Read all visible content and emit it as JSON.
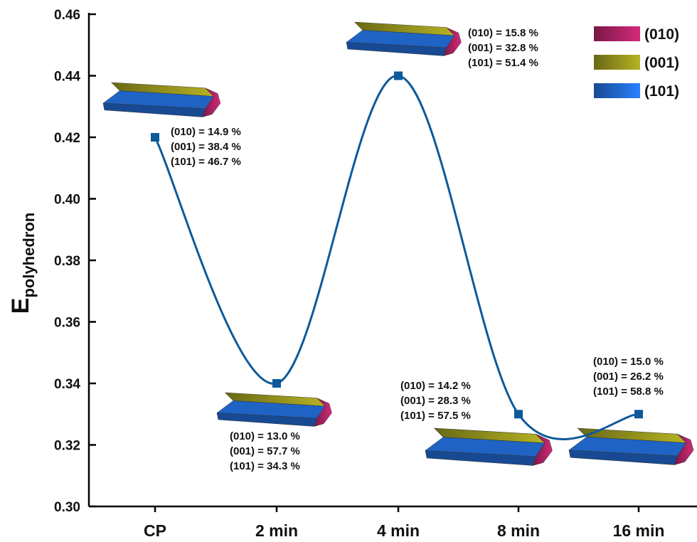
{
  "chart_data": {
    "type": "line",
    "ylabel": {
      "main": "E",
      "sub": "polyhedron"
    },
    "categories": [
      "CP",
      "2 min",
      "4 min",
      "8 min",
      "16 min"
    ],
    "series": [
      {
        "color": "#0d5a9a",
        "values": [
          0.42,
          0.34,
          0.44,
          0.33,
          0.33
        ]
      }
    ],
    "ylim": [
      0.3,
      0.46
    ],
    "yticks": [
      {
        "value": 0.3,
        "label": "0.30"
      },
      {
        "value": 0.32,
        "label": "0.32"
      },
      {
        "value": 0.34,
        "label": "0.34"
      },
      {
        "value": 0.36,
        "label": "0.36"
      },
      {
        "value": 0.38,
        "label": "0.38"
      },
      {
        "value": 0.4,
        "label": "0.40"
      },
      {
        "value": 0.42,
        "label": "0.42"
      },
      {
        "value": 0.44,
        "label": "0.44"
      },
      {
        "value": 0.46,
        "label": "0.46"
      }
    ],
    "legend": [
      {
        "name": "(010)",
        "color": "#a3205e"
      },
      {
        "name": "(001)",
        "color": "#8c8a1c"
      },
      {
        "name": "(101)",
        "color": "#1f63c4"
      }
    ],
    "annotations": [
      [
        "(010) = 14.9 %",
        "(001) = 38.4 %",
        "(101) = 46.7 %"
      ],
      [
        "(010) = 13.0 %",
        "(001) = 57.7 %",
        "(101) = 34.3 %"
      ],
      [
        "(010) = 15.8 %",
        "(001) = 32.8 %",
        "(101) = 51.4 %"
      ],
      [
        "(010) = 14.2 %",
        "(001) = 28.3 %",
        "(101) = 57.5 %"
      ],
      [
        "(010) = 15.0 %",
        "(001) = 26.2 %",
        "(101) = 58.8 %"
      ]
    ]
  }
}
